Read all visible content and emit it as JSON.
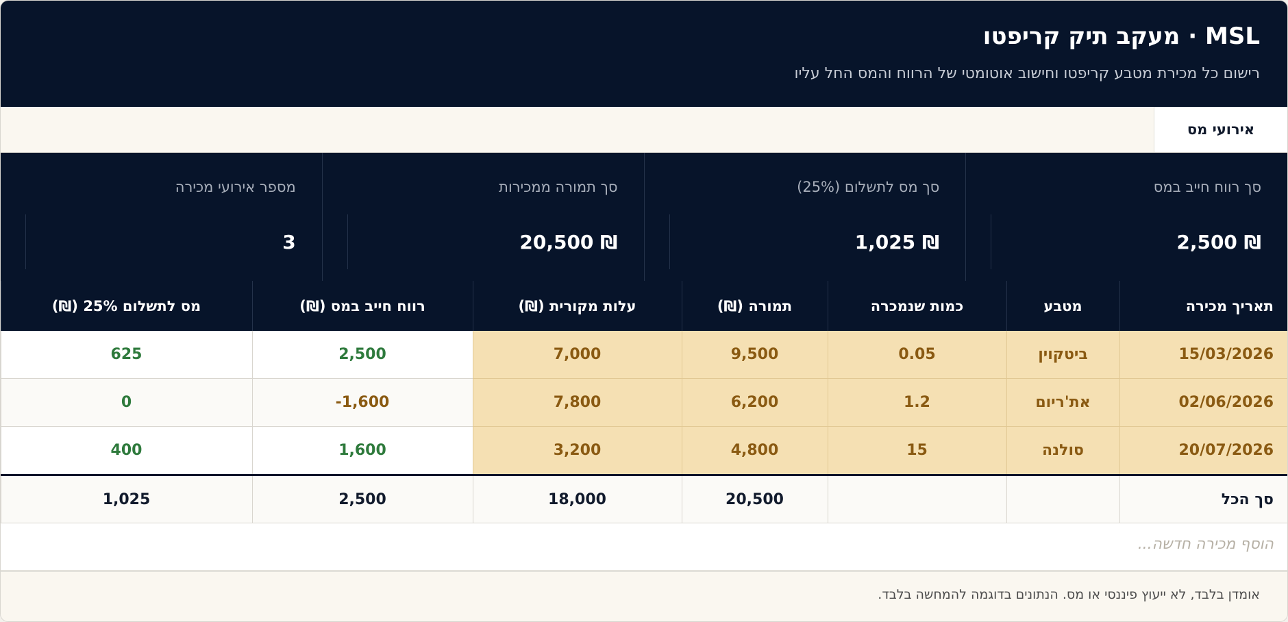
{
  "header": {
    "title": "MSL · מעקב תיק קריפטו",
    "subtitle": "רישום כל מכירת מטבע קריפטו וחישוב אוטומטי של הרווח והמס החל עליו"
  },
  "tabs": [
    {
      "label": "אירועי מס"
    }
  ],
  "stats": [
    {
      "label": "סך רווח חייב במס",
      "value": "₪ 2,500"
    },
    {
      "label": "סך מס לתשלום (25%)",
      "value": "₪ 1,025"
    },
    {
      "label": "סך תמורה ממכירות",
      "value": "₪ 20,500"
    },
    {
      "label": "מספר אירועי מכירה",
      "value": "3"
    }
  ],
  "table": {
    "headers": [
      "תאריך מכירה",
      "מטבע",
      "כמות שנמכרה",
      "תמורה (₪)",
      "עלות מקורית (₪)",
      "רווח חייב במס (₪)",
      "מס לתשלום 25% (₪)"
    ],
    "rows": [
      {
        "date": "15/03/2026",
        "coin": "ביטקוין",
        "qty": "0.05",
        "proceeds": "9,500",
        "cost": "7,000",
        "profit": "2,500",
        "tax": "625"
      },
      {
        "date": "02/06/2026",
        "coin": "את'ריום",
        "qty": "1.2",
        "proceeds": "6,200",
        "cost": "7,800",
        "profit": "-1,600",
        "tax": "0"
      },
      {
        "date": "20/07/2026",
        "coin": "סולנה",
        "qty": "15",
        "proceeds": "4,800",
        "cost": "3,200",
        "profit": "1,600",
        "tax": "400"
      }
    ],
    "total": {
      "label": "סך הכל",
      "qty": "",
      "coin": "",
      "proceeds": "20,500",
      "cost": "18,000",
      "profit": "2,500",
      "tax": "1,025"
    },
    "add_placeholder": "הוסף מכירה חדשה..."
  },
  "footer": "אומדן בלבד, לא ייעוץ פיננסי או מס. הנתונים בדוגמה להמחשה בלבד.",
  "colors": {
    "navy": "#07142a",
    "highlight": "#f5e0b3",
    "positive": "#2e7a3c",
    "brown": "#8a5a12"
  }
}
